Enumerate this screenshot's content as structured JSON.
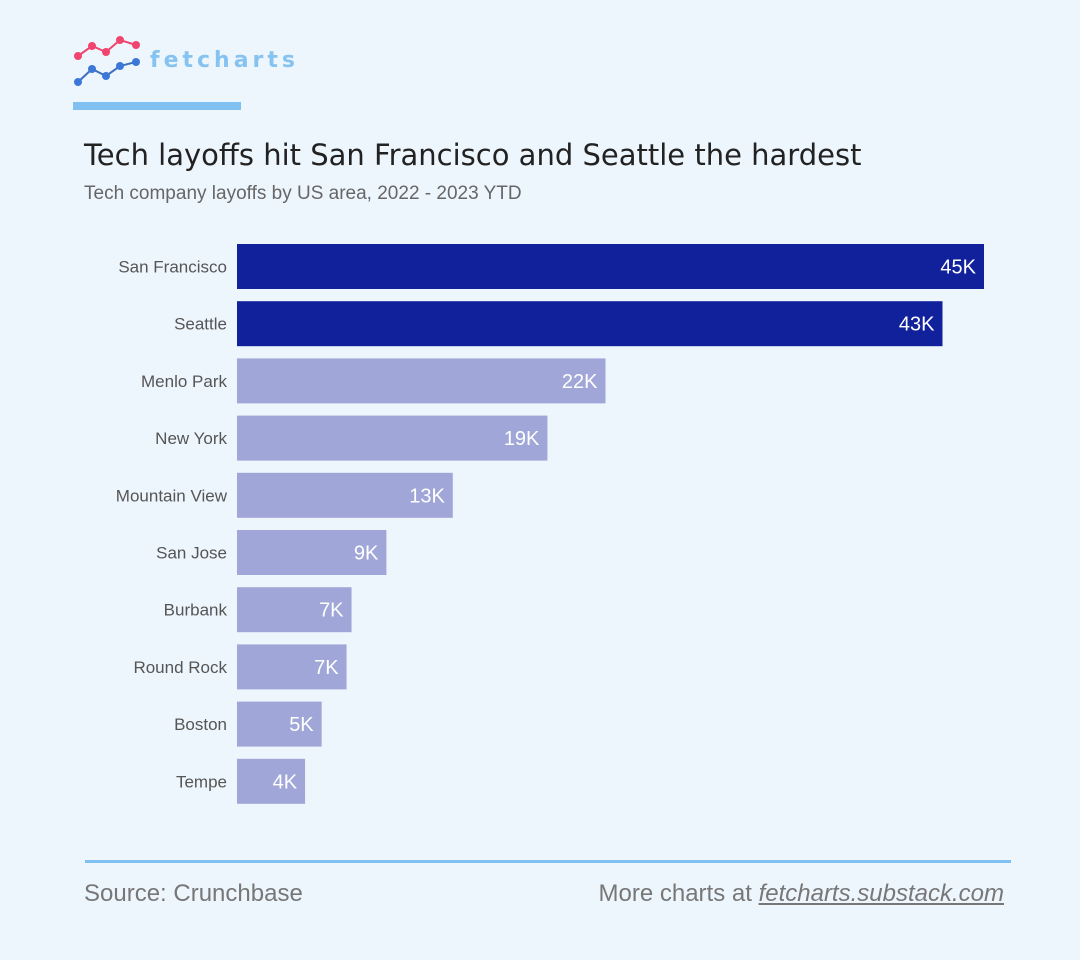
{
  "brand": {
    "name": "fetcharts"
  },
  "colors": {
    "highlight": "#11219c",
    "normal": "#a0a7d8",
    "accent": "#80c1f1",
    "logo_red": "#f0456e",
    "logo_blue": "#3b78d8"
  },
  "chart_data": {
    "type": "bar",
    "orientation": "horizontal",
    "title": "Tech layoffs hit San Francisco and Seattle the hardest",
    "subtitle": "Tech company layoffs by US area, 2022 - 2023 YTD",
    "categories": [
      "San Francisco",
      "Seattle",
      "Menlo Park",
      "New York",
      "Mountain View",
      "San Jose",
      "Burbank",
      "Round Rock",
      "Boston",
      "Tempe"
    ],
    "values": [
      45,
      42.5,
      22.2,
      18.7,
      13,
      9,
      6.9,
      6.6,
      5.1,
      4.1
    ],
    "labels": [
      "45K",
      "43K",
      "22K",
      "19K",
      "13K",
      "9K",
      "7K",
      "7K",
      "5K",
      "4K"
    ],
    "highlighted": [
      true,
      true,
      false,
      false,
      false,
      false,
      false,
      false,
      false,
      false
    ],
    "units": "thousands of layoffs",
    "xlim": [
      0,
      45
    ],
    "grid": false
  },
  "footer": {
    "source": "Source:  Crunchbase",
    "more_prefix": "More charts at ",
    "more_link": "fetcharts.substack.com"
  }
}
